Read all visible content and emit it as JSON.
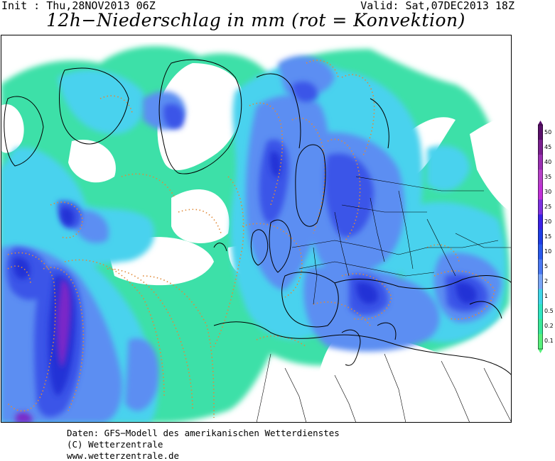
{
  "header": {
    "init": "Init : Thu,28NOV2013 06Z",
    "valid": "Valid: Sat,07DEC2013 18Z"
  },
  "title": "12h−Niederschlag in mm (rot = Konvektion)",
  "legend": {
    "levels": [
      "50",
      "45",
      "40",
      "35",
      "30",
      "25",
      "20",
      "15",
      "10",
      "5",
      "2",
      "1",
      "0.5",
      "0.2",
      "0.1"
    ],
    "colors": [
      "#5a0f6b",
      "#7a1f8f",
      "#9a2fb2",
      "#b640c8",
      "#c030d8",
      "#7d30e0",
      "#3b22e6",
      "#1f3de6",
      "#2a59ec",
      "#4a78f2",
      "#7aa6f6",
      "#3fd6e8",
      "#2ee6c2",
      "#39e89a",
      "#57f07c"
    ]
  },
  "footer": {
    "line1": "Daten: GFS−Modell des amerikanischen Wetterdienstes",
    "line2": "(C) Wetterzentrale",
    "line3": "www.wetterzentrale.de"
  },
  "colors": {
    "light": "#3ee0a8",
    "cyan": "#48d2ee",
    "lightblue": "#5c8ef2",
    "blue": "#3a55e8",
    "darkblue": "#2230d6",
    "purple": "#7a28c8",
    "violet": "#b63fd6",
    "convection": "#e08a3a"
  }
}
